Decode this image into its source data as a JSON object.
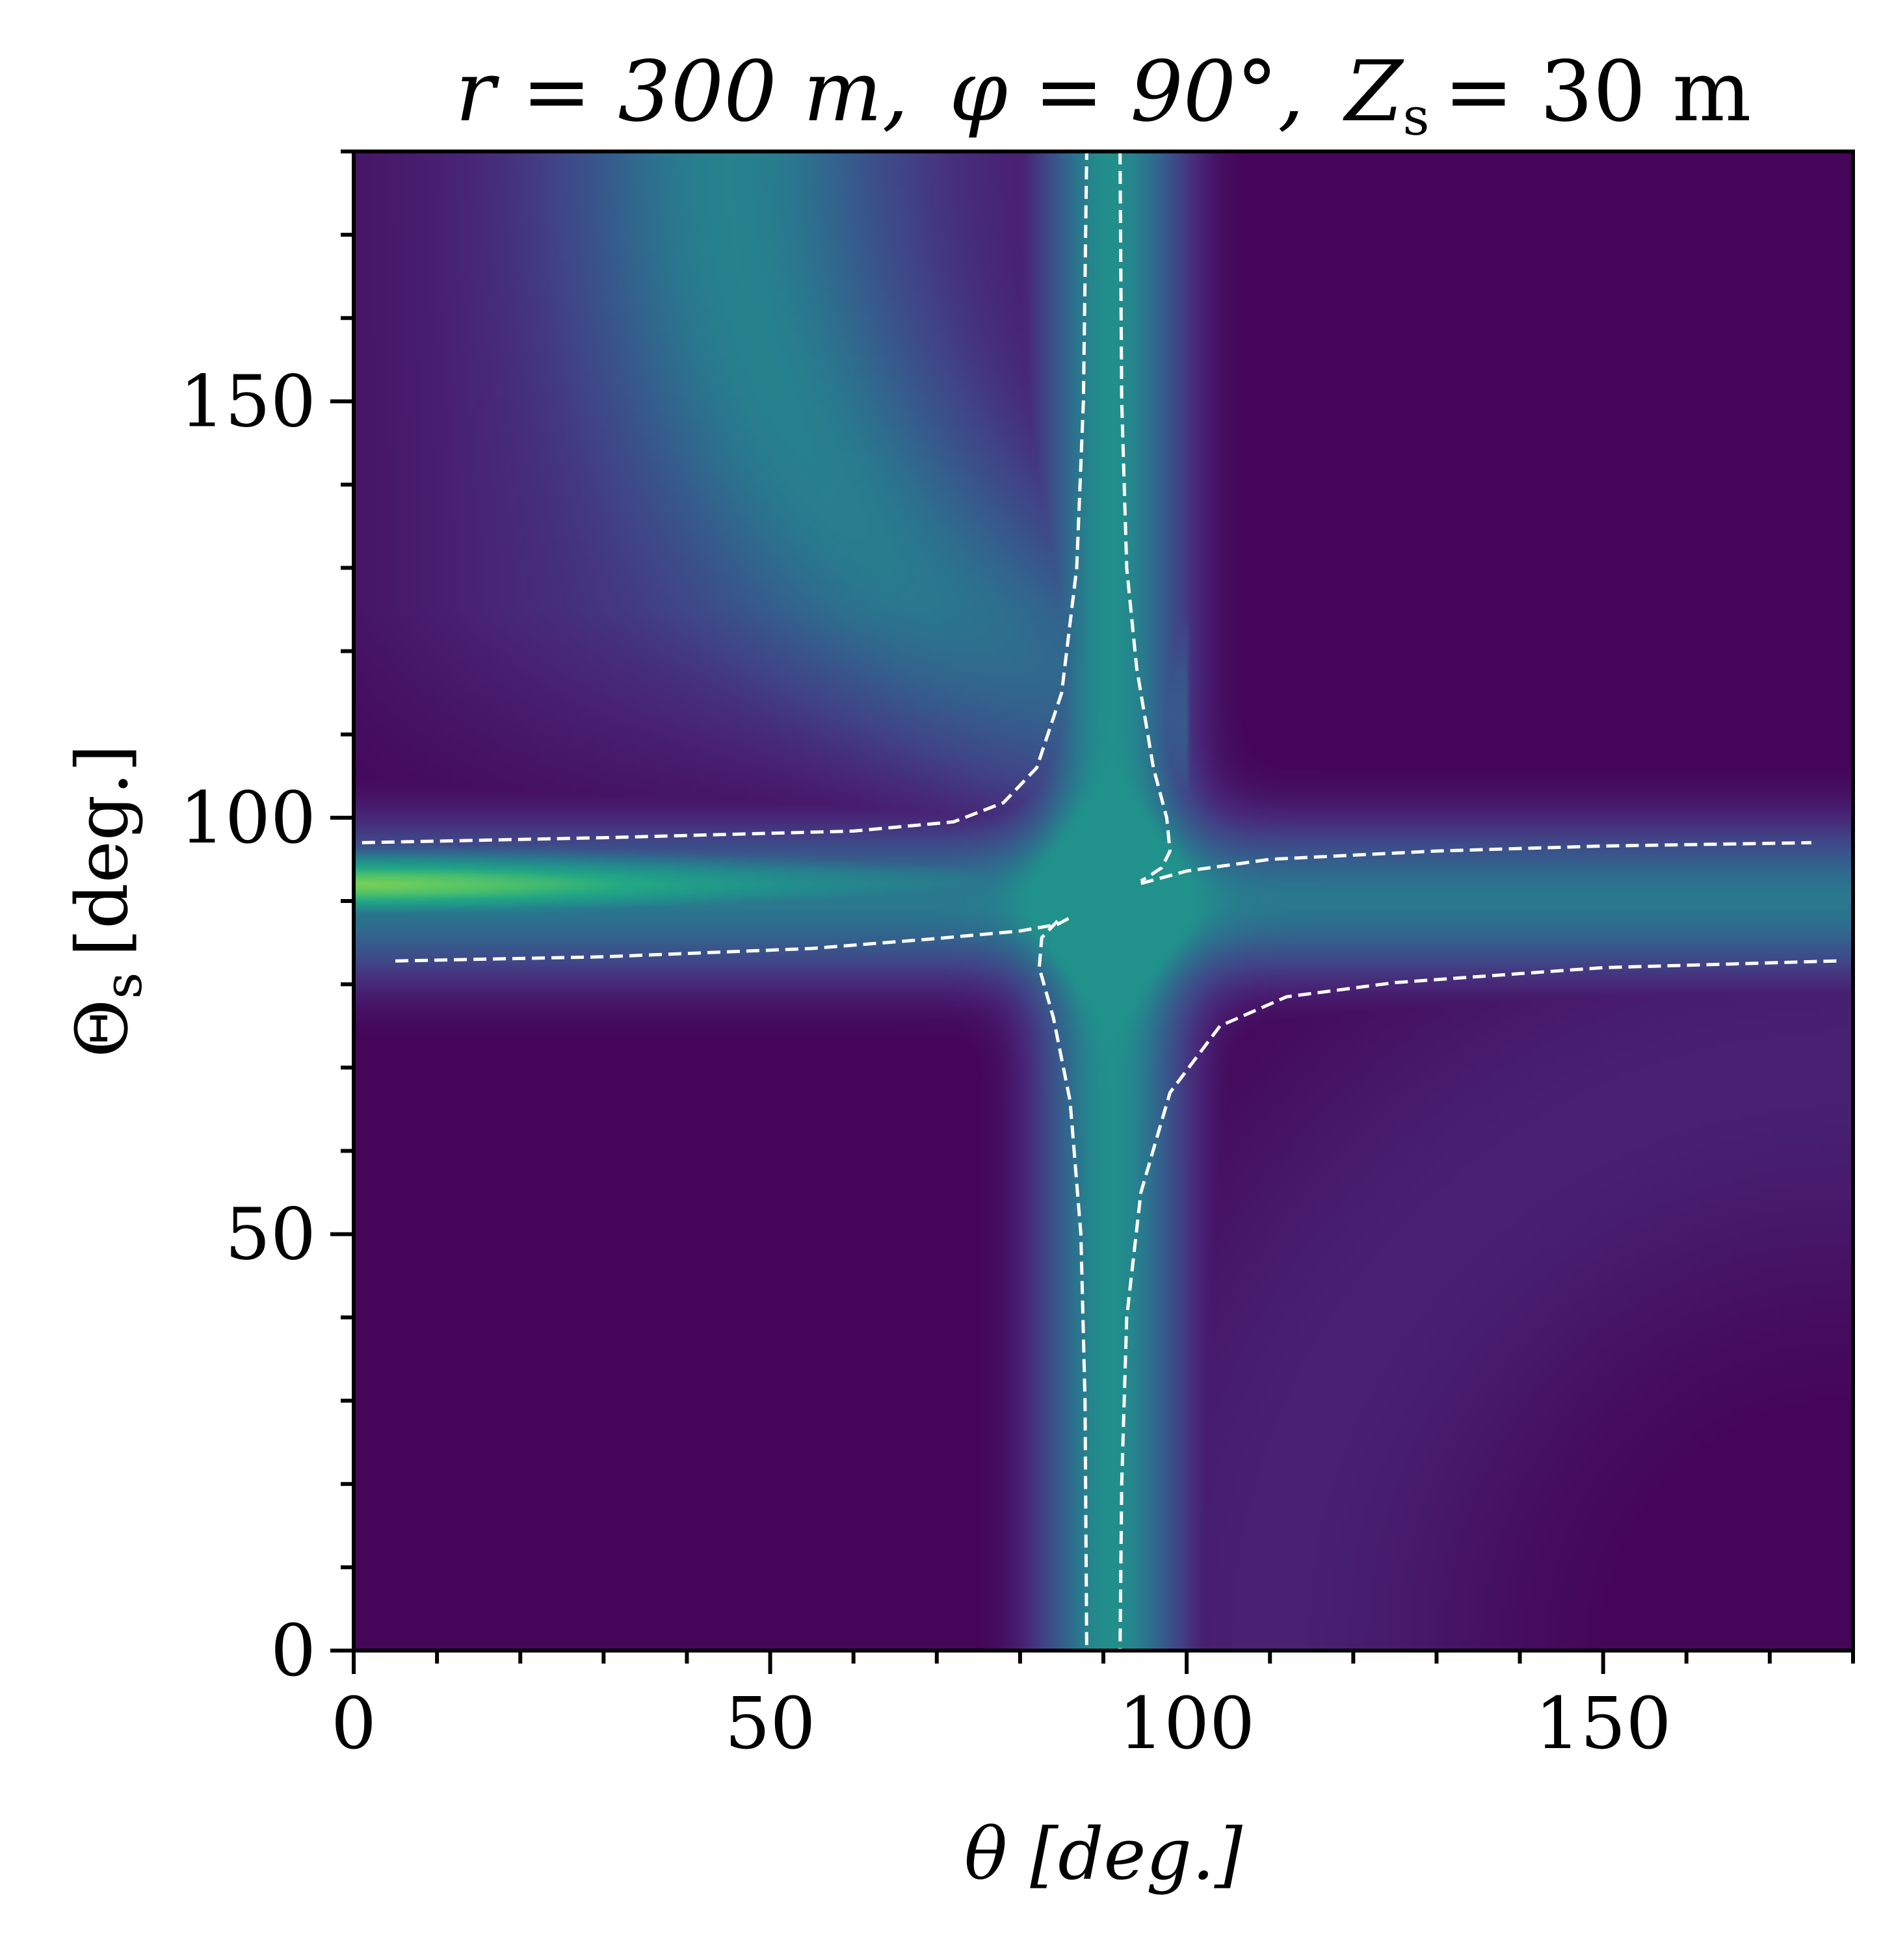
{
  "chart_data": {
    "type": "heatmap",
    "title_parts": [
      "r = 300 m,",
      "φ = 90°,",
      "Z",
      "s",
      "= 30 m"
    ],
    "xlabel": "θ [deg.]",
    "ylabel_parts": [
      "Θ",
      "s",
      "[deg.]"
    ],
    "xlim": [
      0,
      180
    ],
    "ylim": [
      0,
      180
    ],
    "x_ticks": [
      0,
      50,
      100,
      150
    ],
    "y_ticks": [
      0,
      50,
      100,
      150
    ],
    "x_minor_step": 10,
    "y_minor_step": 10,
    "colormap": "viridis",
    "grid": false,
    "contour_color": "#ffffff",
    "contour_style": "dashed",
    "contours": [
      {
        "name": "upper-left",
        "points": [
          [
            1,
            97
          ],
          [
            30,
            97.6
          ],
          [
            60,
            98.4
          ],
          [
            72,
            99.5
          ],
          [
            78,
            101.8
          ],
          [
            82,
            106
          ],
          [
            85,
            115
          ],
          [
            86.8,
            130
          ],
          [
            87.6,
            150
          ],
          [
            88,
            180
          ]
        ]
      },
      {
        "name": "lower-left",
        "points": [
          [
            5,
            82.8
          ],
          [
            30,
            83.3
          ],
          [
            55,
            84.3
          ],
          [
            70,
            85.5
          ],
          [
            80,
            86.4
          ],
          [
            84.5,
            87.2
          ],
          [
            86,
            88
          ]
        ]
      },
      {
        "name": "upper-right",
        "points": [
          [
            92,
            180
          ],
          [
            92.2,
            150
          ],
          [
            92.8,
            130
          ],
          [
            94,
            118
          ],
          [
            96,
            106
          ],
          [
            97.6,
            100
          ],
          [
            98,
            96
          ],
          [
            97,
            94
          ],
          [
            95.5,
            93
          ],
          [
            94.5,
            92.4
          ]
        ]
      },
      {
        "name": "lower-right",
        "points": [
          [
            94.5,
            92.1
          ],
          [
            100,
            93.6
          ],
          [
            110,
            95
          ],
          [
            130,
            96
          ],
          [
            150,
            96.6
          ],
          [
            175,
            97
          ]
        ]
      },
      {
        "name": "lower-middle",
        "points": [
          [
            84.5,
            87.6
          ],
          [
            82.6,
            85.6
          ],
          [
            82.3,
            82
          ],
          [
            84,
            76
          ],
          [
            86,
            66
          ],
          [
            87.3,
            50
          ],
          [
            87.8,
            30
          ],
          [
            88,
            0
          ]
        ]
      },
      {
        "name": "lower-right-branch",
        "points": [
          [
            178,
            82.8
          ],
          [
            150,
            82
          ],
          [
            125,
            80.2
          ],
          [
            112,
            78.5
          ],
          [
            104,
            75
          ],
          [
            98,
            67
          ],
          [
            94.5,
            55
          ],
          [
            92.8,
            40
          ],
          [
            92.2,
            20
          ],
          [
            92,
            0
          ]
        ]
      }
    ]
  }
}
